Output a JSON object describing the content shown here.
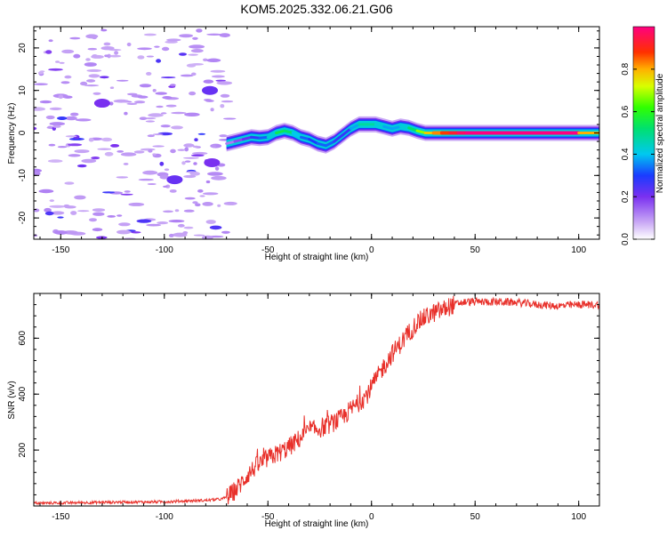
{
  "title": "KOM5.2025.332.06.21.G06",
  "chart_data": [
    {
      "type": "heatmap",
      "title": "KOM5.2025.332.06.21.G06",
      "xlabel": "Height of straight line (km)",
      "ylabel": "Frequency (Hz)",
      "xlim": [
        -163,
        110
      ],
      "ylim": [
        -25,
        25
      ],
      "xticks": [
        -150,
        -100,
        -50,
        0,
        50,
        100
      ],
      "yticks": [
        -20,
        -10,
        0,
        10,
        20
      ],
      "colorbar": {
        "label": "Normalized spectral amplitude",
        "range": [
          0,
          1
        ],
        "ticks": [
          0.0,
          0.2,
          0.4,
          0.6,
          0.8
        ]
      },
      "ridge": {
        "x": [
          -70,
          -66,
          -62,
          -58,
          -54,
          -50,
          -46,
          -42,
          -38,
          -34,
          -30,
          -26,
          -22,
          -18,
          -14,
          -10,
          -6,
          -2,
          2,
          6,
          10,
          14,
          18,
          22,
          26,
          30,
          34,
          38,
          42,
          46,
          50,
          60,
          70,
          80,
          90,
          100,
          110
        ],
        "freq": [
          -2.5,
          -2,
          -1.5,
          -1,
          -1.2,
          -1,
          0,
          0.5,
          0,
          -1,
          -1.5,
          -2.5,
          -3,
          -2,
          -0.5,
          1,
          2,
          2,
          2,
          1.5,
          1,
          1.5,
          1.2,
          0.5,
          0,
          0,
          0,
          0,
          0,
          0,
          0,
          0,
          0,
          0,
          0,
          0,
          0
        ],
        "amp": [
          0.1,
          0.15,
          0.2,
          0.25,
          0.3,
          0.35,
          0.5,
          0.6,
          0.45,
          0.35,
          0.3,
          0.3,
          0.35,
          0.3,
          0.25,
          0.3,
          0.45,
          0.5,
          0.45,
          0.4,
          0.35,
          0.4,
          0.45,
          0.6,
          0.75,
          0.8,
          0.85,
          0.9,
          0.95,
          1,
          1,
          1,
          1,
          1,
          1,
          1,
          0.6
        ]
      }
    },
    {
      "type": "line",
      "xlabel": "Height of straight line (km)",
      "ylabel": "SNR (v/v)",
      "xlim": [
        -163,
        110
      ],
      "ylim": [
        0,
        760
      ],
      "xticks": [
        -150,
        -100,
        -50,
        0,
        50,
        100
      ],
      "yticks": [
        200,
        400,
        600
      ],
      "series": [
        {
          "name": "SNR",
          "color": "#e8302a",
          "x": [
            -163,
            -140,
            -120,
            -100,
            -90,
            -80,
            -72,
            -68,
            -64,
            -60,
            -56,
            -52,
            -50,
            -46,
            -42,
            -38,
            -34,
            -30,
            -26,
            -22,
            -18,
            -14,
            -10,
            -6,
            -2,
            2,
            6,
            10,
            14,
            18,
            22,
            26,
            30,
            34,
            38,
            42,
            46,
            50,
            60,
            70,
            80,
            90,
            100,
            110
          ],
          "y": [
            10,
            12,
            14,
            15,
            18,
            20,
            25,
            40,
            70,
            110,
            140,
            160,
            170,
            185,
            200,
            220,
            245,
            270,
            275,
            285,
            300,
            315,
            345,
            370,
            400,
            450,
            500,
            545,
            580,
            620,
            655,
            675,
            690,
            700,
            715,
            725,
            730,
            730,
            730,
            728,
            720,
            715,
            720,
            720
          ]
        }
      ]
    }
  ]
}
